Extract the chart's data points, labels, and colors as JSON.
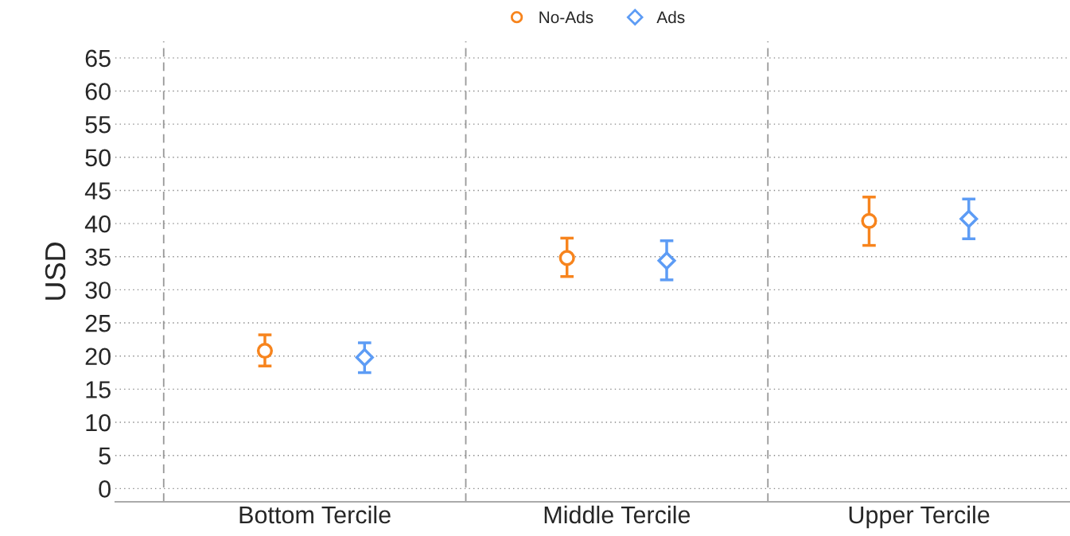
{
  "chart_data": {
    "type": "scatter",
    "ylabel": "USD",
    "categories": [
      "Bottom Tercile",
      "Middle Tercile",
      "Upper Tercile"
    ],
    "series": [
      {
        "name": "No-Ads",
        "color": "#f7841d",
        "marker": "circle",
        "values": [
          20.8,
          34.8,
          40.4
        ],
        "errors": [
          [
            18.5,
            23.2
          ],
          [
            32.0,
            37.8
          ],
          [
            36.7,
            44.0
          ]
        ]
      },
      {
        "name": "Ads",
        "color": "#5d9cf5",
        "marker": "diamond",
        "values": [
          19.8,
          34.4,
          40.7
        ],
        "errors": [
          [
            17.5,
            22.0
          ],
          [
            31.5,
            37.4
          ],
          [
            37.7,
            43.7
          ]
        ]
      }
    ],
    "ylim": [
      -2,
      67.5
    ],
    "yticks": [
      0,
      5,
      10,
      15,
      20,
      25,
      30,
      35,
      40,
      45,
      50,
      55,
      60,
      65
    ],
    "grid": true,
    "legend": "top"
  }
}
